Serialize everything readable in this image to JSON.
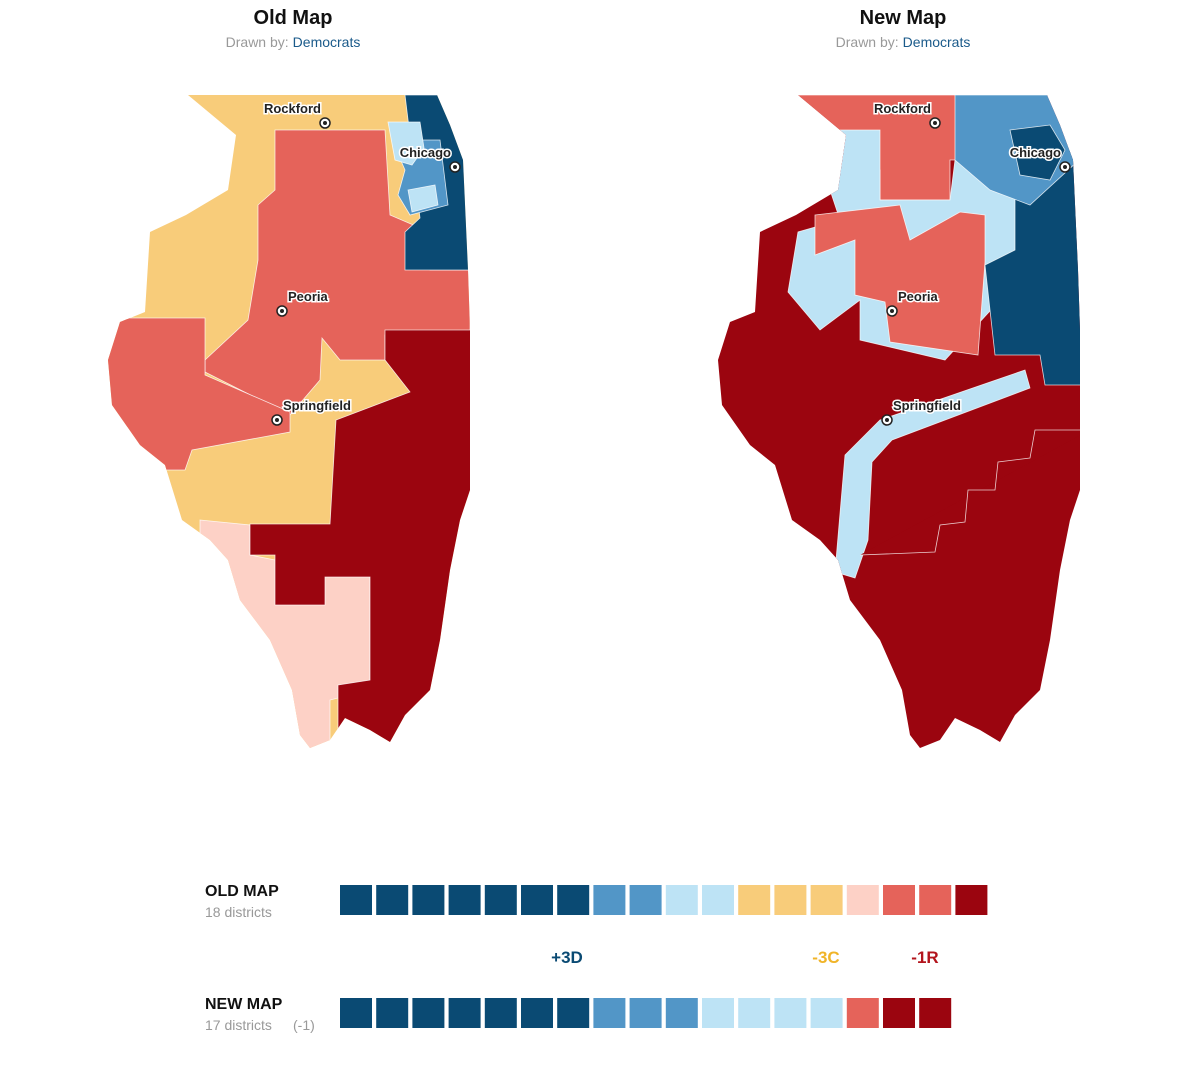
{
  "maps": [
    {
      "title": "Old Map",
      "drawn_by_label": "Drawn by:",
      "drawn_by": "Democrats",
      "cities": [
        "Rockford",
        "Chicago",
        "Peoria",
        "Springfield"
      ]
    },
    {
      "title": "New Map",
      "drawn_by_label": "Drawn by:",
      "drawn_by": "Democrats",
      "cities": [
        "Rockford",
        "Chicago",
        "Peoria",
        "Springfield"
      ]
    }
  ],
  "summary": {
    "rows": [
      {
        "label": "OLD MAP",
        "districts": "18 districts",
        "squares": [
          "#0a4a73",
          "#0a4a73",
          "#0a4a73",
          "#0a4a73",
          "#0a4a73",
          "#0a4a73",
          "#0a4a73",
          "#5296c7",
          "#5296c7",
          "#bde3f5",
          "#bde3f5",
          "#f8cc7a",
          "#f8cc7a",
          "#f8cc7a",
          "#fdd1c6",
          "#e5635a",
          "#e5635a",
          "#9b050f"
        ]
      },
      {
        "label": "NEW MAP",
        "districts": "17 districts",
        "change": "(-1)",
        "squares": [
          "#0a4a73",
          "#0a4a73",
          "#0a4a73",
          "#0a4a73",
          "#0a4a73",
          "#0a4a73",
          "#0a4a73",
          "#5296c7",
          "#5296c7",
          "#5296c7",
          "#bde3f5",
          "#bde3f5",
          "#bde3f5",
          "#bde3f5",
          "#e5635a",
          "#9b050f",
          "#9b050f"
        ]
      }
    ],
    "changes": [
      {
        "text": "+3D",
        "color": "#0a4a73"
      },
      {
        "text": "-3C",
        "color": "#f0b429"
      },
      {
        "text": "-1R",
        "color": "#b3141c"
      }
    ]
  }
}
